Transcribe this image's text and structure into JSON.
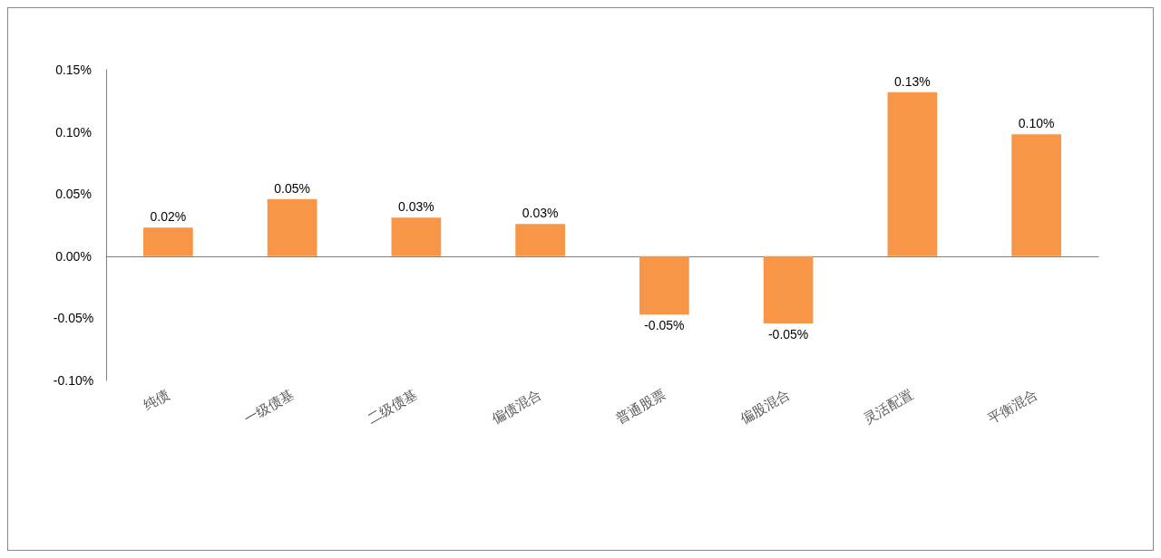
{
  "chart_data": {
    "type": "bar",
    "categories": [
      "纯债",
      "一级债基",
      "二级债基",
      "偏债混合",
      "普通股票",
      "偏股混合",
      "灵活配置",
      "平衡混合"
    ],
    "values": [
      0.023,
      0.046,
      0.031,
      0.026,
      -0.047,
      -0.054,
      0.132,
      0.098
    ],
    "value_labels": [
      "0.02%",
      "0.05%",
      "0.03%",
      "0.03%",
      "-0.05%",
      "-0.05%",
      "0.13%",
      "0.10%"
    ],
    "color": "#f79646",
    "ylim": [
      -0.1,
      0.15
    ],
    "yticks": [
      {
        "value": -0.1,
        "label": "-0.10%"
      },
      {
        "value": -0.05,
        "label": "-0.05%"
      },
      {
        "value": 0,
        "label": "0.00%"
      },
      {
        "value": 0.05,
        "label": "0.05%"
      },
      {
        "value": 0.1,
        "label": "0.10%"
      },
      {
        "value": 0.15,
        "label": "0.15%"
      }
    ]
  }
}
